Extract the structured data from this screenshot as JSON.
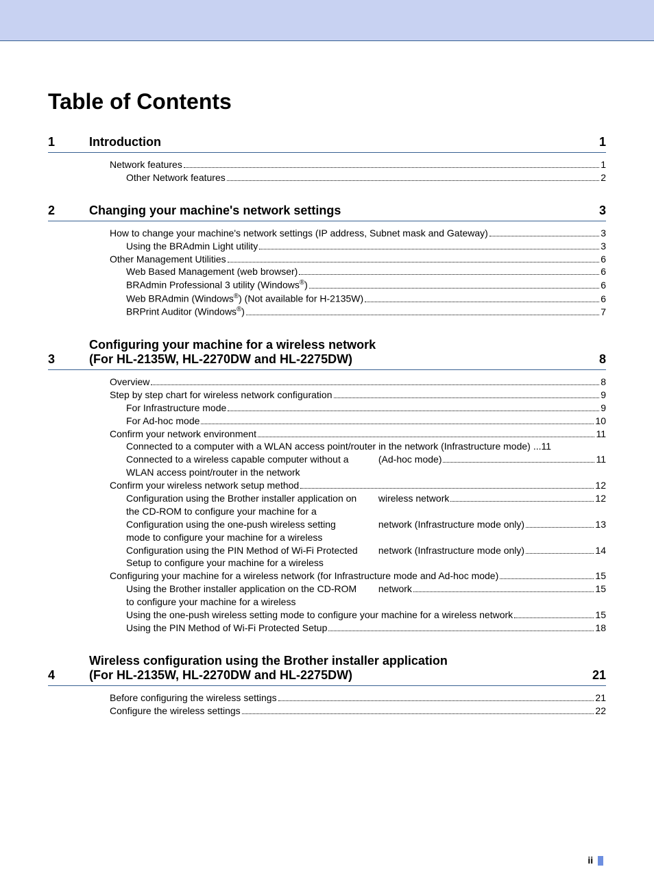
{
  "colors": {
    "topbar_bg": "#c8d2f2",
    "rule": "#365f91",
    "text": "#000000",
    "footer_bar": "#6d8fe0",
    "background": "#ffffff"
  },
  "typography": {
    "title_fontsize": 32,
    "section_fontsize": 18,
    "entry_fontsize": 14,
    "font_family": "Arial"
  },
  "title": "Table of Contents",
  "page_number": "ii",
  "sections": [
    {
      "num": "1",
      "title": "Introduction",
      "page": "1",
      "entries": [
        {
          "lvl": 1,
          "text": "Network features",
          "page": "1"
        },
        {
          "lvl": 2,
          "text": "Other Network features",
          "page": "2"
        }
      ]
    },
    {
      "num": "2",
      "title": "Changing your machine's network settings",
      "page": "3",
      "entries": [
        {
          "lvl": 1,
          "text": "How to change your machine's network settings (IP address, Subnet mask and Gateway)",
          "page": "3"
        },
        {
          "lvl": 2,
          "text": "Using the BRAdmin Light utility",
          "page": "3"
        },
        {
          "lvl": 1,
          "text": "Other Management Utilities",
          "page": "6"
        },
        {
          "lvl": 2,
          "text": "Web Based Management (web browser)",
          "page": "6"
        },
        {
          "lvl": 2,
          "text": "BRAdmin Professional 3 utility (Windows",
          "sup": "®",
          "text_after": ")",
          "page": "6"
        },
        {
          "lvl": 2,
          "text": "Web BRAdmin (Windows",
          "sup": "®",
          "text_after": ") (Not available for H-2135W)",
          "page": "6"
        },
        {
          "lvl": 2,
          "text": "BRPrint Auditor (Windows",
          "sup": "®",
          "text_after": ")",
          "page": "7"
        }
      ]
    },
    {
      "num": "3",
      "title": "Configuring your machine for a wireless network\n(For HL-2135W, HL-2270DW and HL-2275DW)",
      "page": "8",
      "entries": [
        {
          "lvl": 1,
          "text": "Overview",
          "page": "8"
        },
        {
          "lvl": 1,
          "text": "Step by step chart for wireless network configuration ",
          "page": "9"
        },
        {
          "lvl": 2,
          "text": "For Infrastructure mode",
          "page": "9"
        },
        {
          "lvl": 2,
          "text": "For Ad-hoc mode",
          "page": "10"
        },
        {
          "lvl": 1,
          "text": "Confirm your network environment",
          "page": "11"
        },
        {
          "lvl": 2,
          "text": "Connected to a computer with a WLAN access point/router in the network (Infrastructure mode)",
          "page": "11",
          "noleader": true
        },
        {
          "lvl": 2,
          "text": "Connected to a wireless capable computer without a WLAN access point/router in the network",
          "cont": "(Ad-hoc mode)",
          "page": "11"
        },
        {
          "lvl": 1,
          "text": "Confirm your wireless network setup method",
          "page": "12"
        },
        {
          "lvl": 2,
          "text": "Configuration using the Brother installer application on the CD-ROM to configure your machine for a",
          "cont": "wireless network",
          "page": "12"
        },
        {
          "lvl": 2,
          "text": "Configuration using the one-push wireless setting mode to configure your machine for a wireless",
          "cont": "network (Infrastructure mode only)",
          "page": "13"
        },
        {
          "lvl": 2,
          "text": "Configuration using the PIN Method of Wi-Fi Protected Setup to configure your machine for a wireless",
          "cont": "network (Infrastructure mode only)",
          "page": "14"
        },
        {
          "lvl": 1,
          "text": "Configuring your machine for a wireless network (for Infrastructure mode and Ad-hoc mode)",
          "page": "15"
        },
        {
          "lvl": 2,
          "text": "Using the Brother installer application on the CD-ROM to configure your machine for a wireless",
          "cont": "network",
          "page": "15"
        },
        {
          "lvl": 2,
          "text": "Using the one-push wireless setting mode to configure your machine for a wireless network",
          "page": "15"
        },
        {
          "lvl": 2,
          "text": "Using the PIN Method of Wi-Fi Protected Setup",
          "page": "18"
        }
      ]
    },
    {
      "num": "4",
      "title": "Wireless configuration using the Brother installer application\n(For HL-2135W, HL-2270DW and HL-2275DW)",
      "page": "21",
      "entries": [
        {
          "lvl": 1,
          "text": "Before configuring the wireless settings",
          "page": "21"
        },
        {
          "lvl": 1,
          "text": "Configure the wireless settings",
          "page": "22"
        }
      ]
    }
  ]
}
